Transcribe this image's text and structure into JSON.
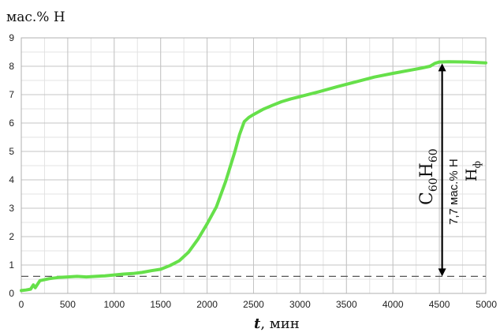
{
  "chart_data": {
    "type": "line",
    "ylabel": "мас.% Н",
    "xlabel_var": "t",
    "xlabel_unit": ", мин",
    "xlim": [
      0,
      5000
    ],
    "ylim": [
      0,
      9
    ],
    "x_ticks": [
      0,
      500,
      1000,
      1500,
      2000,
      2500,
      3000,
      3500,
      4000,
      4500,
      5000
    ],
    "y_ticks": [
      0,
      1,
      2,
      3,
      4,
      5,
      6,
      7,
      8,
      9
    ],
    "grid": true,
    "series": [
      {
        "color": "#66e04a",
        "x": [
          0,
          50,
          100,
          130,
          150,
          200,
          300,
          400,
          500,
          600,
          700,
          800,
          900,
          1000,
          1100,
          1200,
          1300,
          1400,
          1500,
          1600,
          1700,
          1800,
          1900,
          2000,
          2100,
          2200,
          2300,
          2350,
          2400,
          2450,
          2500,
          2600,
          2700,
          2800,
          2900,
          3000,
          3200,
          3400,
          3600,
          3800,
          4000,
          4200,
          4300,
          4400,
          4450,
          4500,
          4600,
          4800,
          5000
        ],
        "y": [
          0.1,
          0.12,
          0.15,
          0.3,
          0.2,
          0.45,
          0.52,
          0.56,
          0.58,
          0.6,
          0.58,
          0.6,
          0.62,
          0.65,
          0.68,
          0.7,
          0.74,
          0.8,
          0.85,
          0.98,
          1.15,
          1.45,
          1.9,
          2.45,
          3.05,
          3.95,
          5.0,
          5.6,
          6.05,
          6.2,
          6.3,
          6.48,
          6.62,
          6.75,
          6.85,
          6.93,
          7.1,
          7.28,
          7.45,
          7.62,
          7.75,
          7.87,
          7.93,
          8.0,
          8.1,
          8.15,
          8.16,
          8.15,
          8.12
        ]
      }
    ],
    "reference_line": {
      "y": 0.6,
      "style": "dashed",
      "color": "#555555"
    },
    "annotation": {
      "formula_c": "C",
      "formula_c_sub": "60",
      "formula_h": "H",
      "formula_h_sub": "60",
      "capacity": "7,7 мас.% Н",
      "hf_main": "H",
      "hf_sub": "ф",
      "arrow_y": [
        0.6,
        8.1
      ],
      "arrow_x": 4530
    }
  }
}
